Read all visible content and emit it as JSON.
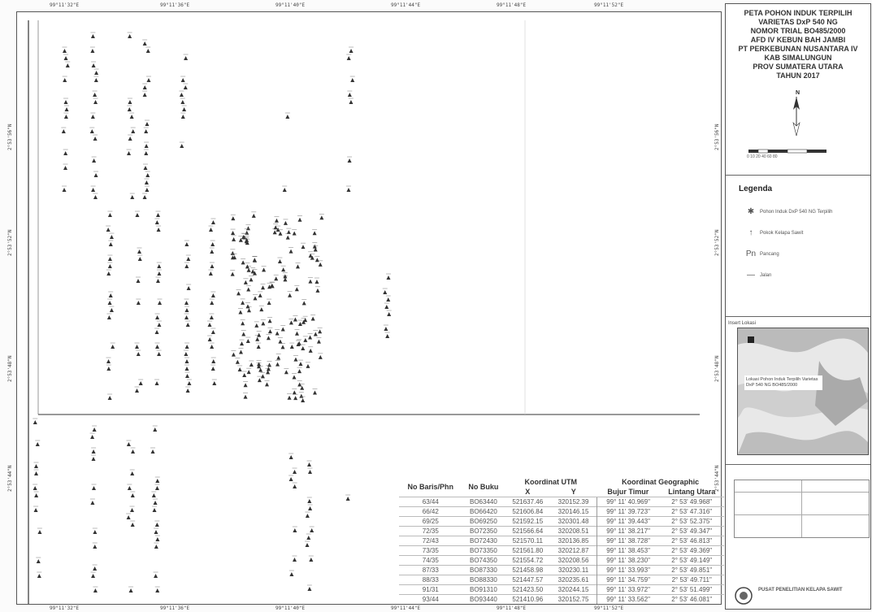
{
  "map": {
    "top_ticks": [
      "99°11'32\"E",
      "99°11'36\"E",
      "99°11'40\"E",
      "99°11'44\"E",
      "99°11'48\"E",
      "99°11'52\"E"
    ],
    "bottom_ticks": [
      "99°11'32\"E",
      "99°11'36\"E",
      "99°11'40\"E",
      "99°11'44\"E",
      "99°11'48\"E",
      "99°11'52\"E"
    ],
    "left_ticks": [
      "2°53'56\"N",
      "2°53'52\"N",
      "2°53'48\"N",
      "2°53'44\"N"
    ],
    "right_ticks": [
      "2°53'56\"N",
      "2°53'52\"N",
      "2°53'48\"N",
      "2°53'44\"N"
    ],
    "tree_color": "#333333"
  },
  "table": {
    "headers": {
      "no_baris": "No Baris/Phn",
      "no_buku": "No Buku",
      "utm": "Koordinat UTM",
      "geo": "Koordinat Geographic",
      "x": "X",
      "y": "Y",
      "bujur": "Bujur Timur",
      "lintang": "Lintang Utara"
    },
    "rows": [
      [
        "63/44",
        "BO63440",
        "521637.46",
        "320152.39",
        "99° 11' 40.969\"",
        "2° 53' 49.968\""
      ],
      [
        "66/42",
        "BO66420",
        "521606.84",
        "320146.15",
        "99° 11' 39.723\"",
        "2° 53' 47.316\""
      ],
      [
        "69/25",
        "BO69250",
        "521592.15",
        "320301.48",
        "99° 11' 39.443\"",
        "2° 53' 52.375\""
      ],
      [
        "72/35",
        "BO72350",
        "521566.64",
        "320208.51",
        "99° 11' 38.217\"",
        "2° 53' 49.347\""
      ],
      [
        "72/43",
        "BO72430",
        "521570.11",
        "320136.85",
        "99° 11' 38.728\"",
        "2° 53' 46.813\""
      ],
      [
        "73/35",
        "BO73350",
        "521561.80",
        "320212.87",
        "99° 11' 38.453\"",
        "2° 53' 49.369\""
      ],
      [
        "74/35",
        "BO74350",
        "521554.72",
        "320208.56",
        "99° 11' 38.230\"",
        "2° 53' 49.149\""
      ],
      [
        "87/33",
        "BO87330",
        "521458.98",
        "320230.11",
        "99° 11' 33.993\"",
        "2° 53' 49.851\""
      ],
      [
        "88/33",
        "BO88330",
        "521447.57",
        "320235.61",
        "99° 11' 34.759\"",
        "2° 53' 49.711\""
      ],
      [
        "91/31",
        "BO91310",
        "521423.50",
        "320244.15",
        "99° 11' 33.972\"",
        "2° 53' 51.499\""
      ],
      [
        "93/44",
        "BO93440",
        "521410.96",
        "320152.75",
        "99° 11' 33.562\"",
        "2° 53' 46.081\""
      ]
    ]
  },
  "side": {
    "title_lines": [
      "PETA POHON INDUK TERPILIH",
      "VARIETAS DxP 540 NG",
      "NOMOR TRIAL BO485/2000",
      "AFD IV KEBUN BAH JAMBI",
      "PT PERKEBUNAN NUSANTARA IV",
      "KAB SIMALUNGUN",
      "PROV SUMATERA UTARA",
      "TAHUN 2017"
    ],
    "north": "N",
    "scale_labels": "0 10 20     40     60     80",
    "legend_title": "Legenda",
    "legend_items": [
      {
        "icon": "palm-tree-icon",
        "glyph": "✱",
        "label": "Pohon Induk DxP 540 NG Terpilih"
      },
      {
        "icon": "tree-icon",
        "glyph": "↑",
        "label": "Pokok Kelapa Sawit"
      },
      {
        "icon": "number-icon",
        "glyph": "Pn",
        "label": "Pancang"
      },
      {
        "icon": "road-icon",
        "glyph": "—",
        "label": "Jalan"
      }
    ],
    "inset_title": "Insert Lokasi",
    "inset_caption": "Lokasi Pohon Induk Terpilih Varietas DxP 540 NG BO485/2000",
    "org_name": "PUSAT PENELITIAN KELAPA SAWIT"
  }
}
